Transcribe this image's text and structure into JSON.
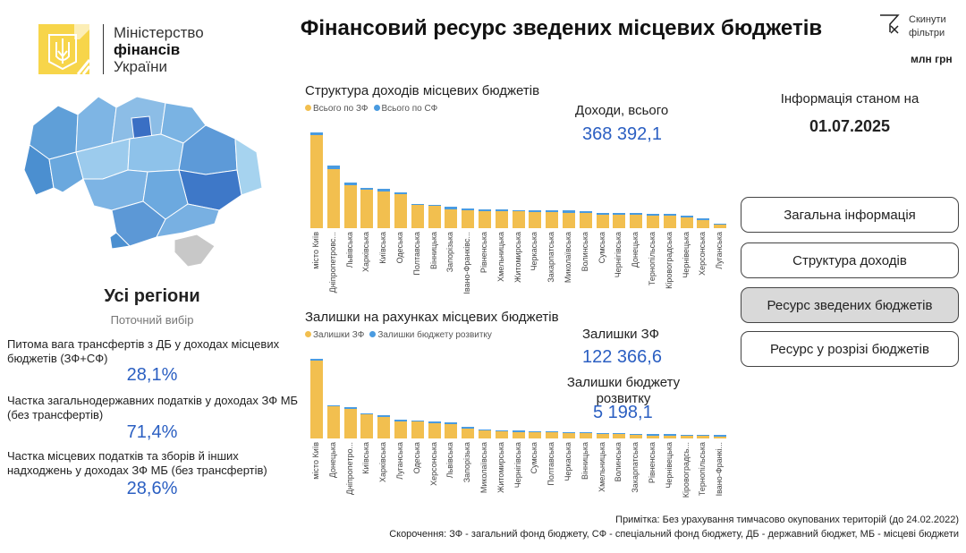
{
  "header": {
    "logo": {
      "line1": "Міністерство",
      "line2": "фінансів",
      "line3": "України"
    },
    "title": "Фінансовий ресурс зведених місцевих бюджетів",
    "reset_filters": {
      "line1": "Скинути",
      "line2": "фільтри",
      "icon": "filter-clear-icon"
    },
    "unit": "млн грн"
  },
  "left": {
    "region": "Усі регіони",
    "region_sub": "Поточний вибір",
    "kpis": [
      {
        "label": "Питома вага трансфертів з ДБ у доходах місцевих бюджетів (ЗФ+СФ)",
        "value": "28,1%"
      },
      {
        "label": "Частка загальнодержавних податків у доходах ЗФ МБ (без трансфертів)",
        "value": "71,4%"
      },
      {
        "label": "Частка місцевих податків та зборів й інших надходжень у доходах ЗФ МБ (без трансфертів)",
        "value": "28,6%"
      }
    ]
  },
  "colors": {
    "zf": "#f2bf4f",
    "sf": "#4a9be0",
    "accent": "#2b5fc2"
  },
  "kpi_top": {
    "label": "Доходи, всього",
    "value": "368 392,1"
  },
  "kpi_bottom": {
    "zf_label": "Залишки ЗФ",
    "zf_value": "122 366,6",
    "dev_label": "Залишки бюджету розвитку",
    "dev_value": "5 198,1"
  },
  "info": {
    "label": "Інформація станом на",
    "date": "01.07.2025"
  },
  "nav": [
    {
      "label": "Загальна інформація",
      "active": false
    },
    {
      "label": "Структура доходів",
      "active": false
    },
    {
      "label": "Ресурс зведених бюджетів",
      "active": true
    },
    {
      "label": "Ресурс у розрізі бюджетів",
      "active": false
    }
  ],
  "notes": {
    "note": "Примітка: Без урахування тимчасово окупованих територій (до 24.02.2022)",
    "abbr": "Скорочення: ЗФ - загальний фонд бюджету, СФ - спеціальний фонд бюджету, ДБ - державний бюджет, МБ - місцеві бюджети"
  },
  "chart_data": [
    {
      "type": "bar",
      "stacked": true,
      "title": "Структура доходів місцевих бюджетів",
      "legend": [
        "Всього по ЗФ",
        "Всього по СФ"
      ],
      "categories": [
        "місто Київ",
        "Дніпропетровс...",
        "Львівська",
        "Харківська",
        "Київська",
        "Одеська",
        "Полтавська",
        "Вінницька",
        "Запорізька",
        "Івано-Франківс...",
        "Рівненська",
        "Хмельницька",
        "Житомирська",
        "Черкаська",
        "Закарпатська",
        "Миколаївська",
        "Волинська",
        "Сумська",
        "Чернігівська",
        "Донецька",
        "Тернопільська",
        "Кіровоградська",
        "Чернівецька",
        "Херсонська",
        "Луганська"
      ],
      "series": [
        {
          "name": "Всього по ЗФ",
          "values": [
            54700,
            34800,
            25300,
            22400,
            21800,
            20100,
            13600,
            13000,
            11300,
            10700,
            10200,
            10200,
            9900,
            9700,
            9700,
            9200,
            9000,
            8100,
            8100,
            7900,
            7600,
            7600,
            6500,
            4800,
            1900
          ]
        },
        {
          "name": "Всього по СФ",
          "values": [
            1600,
            2100,
            1600,
            1400,
            1200,
            900,
            500,
            900,
            1100,
            700,
            400,
            700,
            700,
            500,
            700,
            1100,
            500,
            500,
            700,
            500,
            500,
            500,
            900,
            500,
            200
          ]
        }
      ]
    },
    {
      "type": "bar",
      "stacked": true,
      "title": "Залишки на рахунках місцевих бюджетів",
      "legend": [
        "Залишки ЗФ",
        "Залишки бюджету розвитку"
      ],
      "categories": [
        "місто Київ",
        "Донецька",
        "Дніпропетро...",
        "Київська",
        "Харківська",
        "Луганська",
        "Одеська",
        "Херсонська",
        "Львівська",
        "Запорізька",
        "Миколаївська",
        "Житомирська",
        "Чернігівська",
        "Сумська",
        "Полтавська",
        "Черкаська",
        "Вінницька",
        "Хмельницька",
        "Волинська",
        "Закарпатська",
        "Рівненська",
        "Чернівецька",
        "Кіровоградсь...",
        "Тернопільська",
        "Івано-Франкі..."
      ],
      "series": [
        {
          "name": "Залишки ЗФ",
          "values": [
            29100,
            11900,
            11100,
            9000,
            8100,
            6400,
            6300,
            5800,
            5300,
            3700,
            3000,
            2600,
            2400,
            2200,
            2300,
            2000,
            1900,
            1600,
            1600,
            1300,
            1100,
            1100,
            900,
            900,
            700
          ]
        },
        {
          "name": "Залишки бюджету розвитку",
          "values": [
            300,
            500,
            200,
            500,
            200,
            100,
            300,
            100,
            600,
            100,
            300,
            400,
            100,
            100,
            200,
            100,
            300,
            100,
            100,
            100,
            100,
            200,
            100,
            100,
            100
          ]
        }
      ]
    }
  ]
}
